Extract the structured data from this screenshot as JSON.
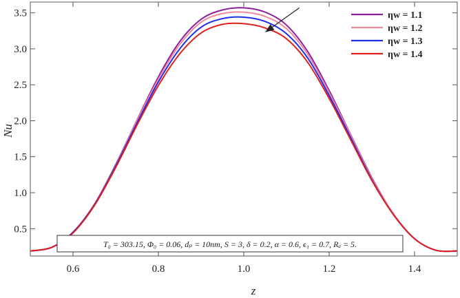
{
  "chart_data": {
    "type": "line",
    "xlabel": "z",
    "ylabel": "Nu",
    "xlim": [
      0.5,
      1.5
    ],
    "ylim": [
      0.12,
      3.65
    ],
    "xticks": [
      "0.6",
      "0.8",
      "1.0",
      "1.2",
      "1.4"
    ],
    "yticks": [
      "0.5",
      "1.0",
      "1.5",
      "2.0",
      "2.5",
      "3.0",
      "3.5"
    ],
    "legend_position": "top-right",
    "grid": false,
    "annotation": "T₀ = 303.15, Φ₀ = 0.06, dₚ = 10nm, S = 3, δ = 0.2, α = 0.6, ϵ₁ = 0.7, Rₐ = 5.",
    "arrow": {
      "from": [
        1.13,
        3.57
      ],
      "to": [
        1.05,
        3.23
      ]
    },
    "x": [
      0.5,
      0.55,
      0.6,
      0.65,
      0.7,
      0.75,
      0.8,
      0.85,
      0.9,
      0.95,
      1.0,
      1.05,
      1.1,
      1.15,
      1.2,
      1.25,
      1.3,
      1.35,
      1.4,
      1.45,
      1.5
    ],
    "series": [
      {
        "name": "ηw = 1.1",
        "color": "#8b1fa0",
        "values": [
          0.19,
          0.24,
          0.45,
          0.84,
          1.39,
          2.01,
          2.61,
          3.1,
          3.41,
          3.54,
          3.57,
          3.51,
          3.33,
          2.96,
          2.42,
          1.81,
          1.21,
          0.71,
          0.36,
          0.2,
          0.19
        ]
      },
      {
        "name": "ηw = 1.2",
        "color": "#f0899a",
        "values": [
          0.19,
          0.24,
          0.45,
          0.84,
          1.38,
          2.0,
          2.58,
          3.06,
          3.37,
          3.49,
          3.51,
          3.45,
          3.28,
          2.92,
          2.39,
          1.8,
          1.2,
          0.71,
          0.36,
          0.2,
          0.19
        ]
      },
      {
        "name": "ηw = 1.3",
        "color": "#1c2ee8",
        "values": [
          0.19,
          0.24,
          0.45,
          0.83,
          1.37,
          1.97,
          2.54,
          3.0,
          3.3,
          3.42,
          3.44,
          3.38,
          3.21,
          2.87,
          2.35,
          1.77,
          1.18,
          0.7,
          0.36,
          0.2,
          0.19
        ]
      },
      {
        "name": "ηw = 1.4",
        "color": "#e0201e",
        "values": [
          0.19,
          0.24,
          0.44,
          0.82,
          1.35,
          1.94,
          2.49,
          2.93,
          3.22,
          3.34,
          3.35,
          3.29,
          3.14,
          2.81,
          2.31,
          1.74,
          1.17,
          0.7,
          0.36,
          0.2,
          0.19
        ]
      }
    ]
  }
}
